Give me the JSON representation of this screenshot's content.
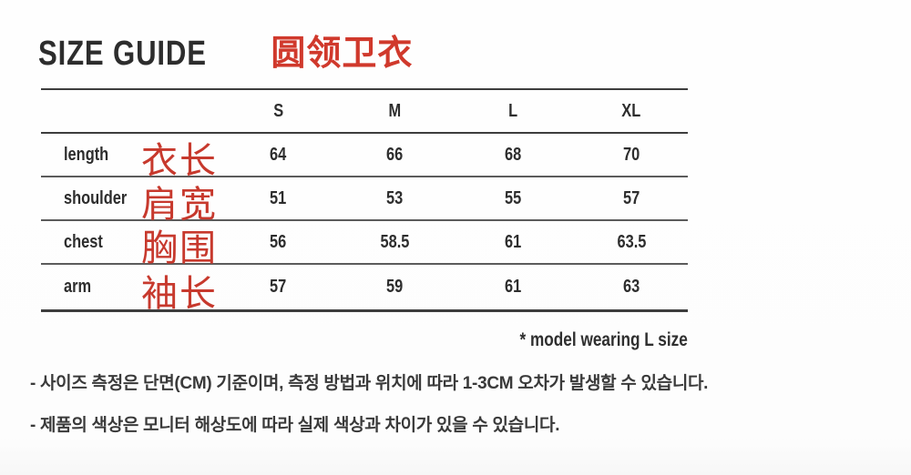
{
  "header": {
    "title": "SIZE GUIDE",
    "title_cn": "圆领卫衣"
  },
  "table": {
    "columns": [
      "S",
      "M",
      "L",
      "XL"
    ],
    "rows": [
      {
        "label": "length",
        "label_cn": "衣长",
        "values": [
          "64",
          "66",
          "68",
          "70"
        ]
      },
      {
        "label": "shoulder",
        "label_cn": "肩宽",
        "values": [
          "51",
          "53",
          "55",
          "57"
        ]
      },
      {
        "label": "chest",
        "label_cn": "胸围",
        "values": [
          "56",
          "58.5",
          "61",
          "63.5"
        ]
      },
      {
        "label": "arm",
        "label_cn": "袖长",
        "values": [
          "57",
          "59",
          "61",
          "63"
        ]
      }
    ],
    "footnote": "* model wearing L size",
    "unit": "CM"
  },
  "notes": [
    "- 사이즈 측정은 단면(CM) 기준이며, 측정 방법과 위치에 따라 1-3CM 오차가 발생할 수 있습니다.",
    "- 제품의 색상은 모니터 해상도에 따라 실제 색상과 차이가 있을 수 있습니다."
  ],
  "colors": {
    "accent_red": "#d0392c",
    "annotation_red": "#c7392d",
    "text": "#2d2d2d",
    "rule_heavy": "#3d3d3d",
    "rule_light": "#5b5b5b",
    "background": "#fdfdfd"
  }
}
